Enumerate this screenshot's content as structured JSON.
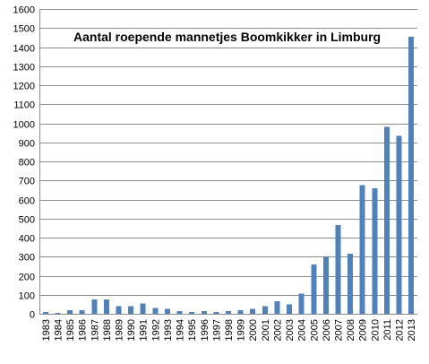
{
  "chart_data": {
    "type": "bar",
    "title": "Aantal roepende mannetjes Boomkikker in Limburg",
    "xlabel": "",
    "ylabel": "",
    "ylim": [
      0,
      1600
    ],
    "y_ticks": [
      0,
      100,
      200,
      300,
      400,
      500,
      600,
      700,
      800,
      900,
      1000,
      1100,
      1200,
      1300,
      1400,
      1500,
      1600
    ],
    "grid": true,
    "legend": "none",
    "bar_color": "#4f81bd",
    "categories": [
      "1983",
      "1984",
      "1985",
      "1986",
      "1987",
      "1988",
      "1989",
      "1990",
      "1991",
      "1992",
      "1993",
      "1994",
      "1995",
      "1996",
      "1997",
      "1998",
      "1999",
      "2000",
      "2001",
      "2002",
      "2003",
      "2004",
      "2005",
      "2006",
      "2007",
      "2008",
      "2009",
      "2010",
      "2011",
      "2012",
      "2013"
    ],
    "values": [
      10,
      5,
      20,
      20,
      75,
      75,
      40,
      40,
      55,
      30,
      25,
      15,
      10,
      15,
      10,
      15,
      20,
      25,
      40,
      65,
      50,
      105,
      260,
      300,
      465,
      315,
      675,
      660,
      980,
      935,
      1455
    ]
  }
}
